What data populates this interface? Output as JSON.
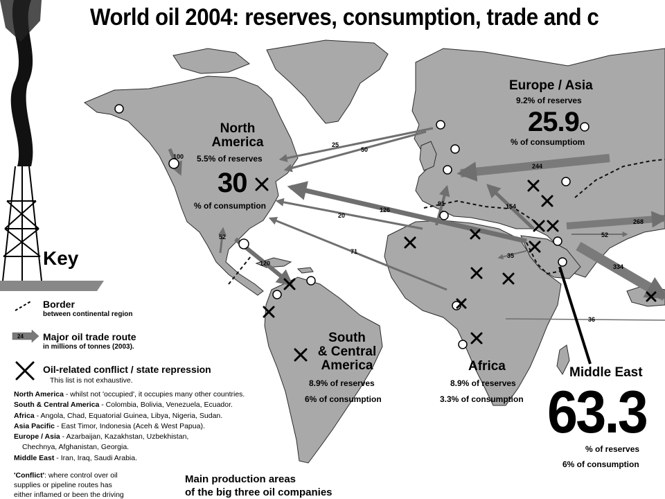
{
  "title": "World oil 2004: reserves, consumption, trade and c",
  "regions": {
    "north_america": {
      "name_line1": "North",
      "name_line2": "America",
      "reserves": "5.5% of reserves",
      "big": "30",
      "consumption": "% of consumption"
    },
    "europe_asia": {
      "name": "Europe / Asia",
      "reserves": "9.2% of reserves",
      "big": "25.9",
      "consumption": "% of consumptiom"
    },
    "south_central_america": {
      "name_line1": "South",
      "name_line2": "& Central",
      "name_line3": "America",
      "reserves": "8.9% of reserves",
      "consumption": "6% of consumption"
    },
    "africa": {
      "name": "Africa",
      "reserves": "8.9% of reserves",
      "consumption": "3.3% of consumption"
    },
    "middle_east": {
      "name": "Middle East",
      "big": "63.3",
      "reserves": "% of reserves",
      "consumption": "6% of consumption"
    }
  },
  "trade_routes": [
    "100",
    "25",
    "50",
    "244",
    "126",
    "20",
    "91",
    "154",
    "268",
    "52",
    "71",
    "35",
    "120",
    "52",
    "334",
    "36"
  ],
  "key": {
    "title": "Key",
    "border_label": "Border",
    "border_sub": "between continental region",
    "route_label": "Major oil trade route",
    "route_sub": "in millions of tonnes (2003).",
    "route_sample": "24",
    "conflict_label": "Oil-related conflict / state repression",
    "conflict_sub": "This list is not exhaustive."
  },
  "conflict_list": [
    {
      "region": "North America",
      "text": " - whilst not 'occupied', it occupies many other countries."
    },
    {
      "region": "South & Central America",
      "text": " - Colombia, Bolivia, Venezuela, Ecuador."
    },
    {
      "region": "Africa",
      "text": " - Angola, Chad, Equatorial Guinea, Libya, Nigeria, Sudan."
    },
    {
      "region": "Asia Pacific",
      "text": " - East Timor, Indonesia (Aceh & West Papua)."
    },
    {
      "region": "Europe / Asia",
      "text": " - Azarbaijan, Kazakhstan, Uzbekhistan,"
    },
    {
      "region": "",
      "text": "Chechnya, Afghanistan, Georgia."
    },
    {
      "region": "Middle East",
      "text": " - Iran, Iraq, Saudi Arabia."
    }
  ],
  "conflict_note": {
    "term": "'Conflict'",
    "line1": ": where control over oil",
    "line2": "supplies or pipeline routes has",
    "line3": "either inflamed or been the driving"
  },
  "production": {
    "line1": "Main production areas",
    "line2": "of the big three oil companies"
  },
  "colors": {
    "land": "#a9a9a9",
    "sea": "#ffffff",
    "arrow": "#7a7a7a",
    "coast": "#2a2a2a"
  }
}
